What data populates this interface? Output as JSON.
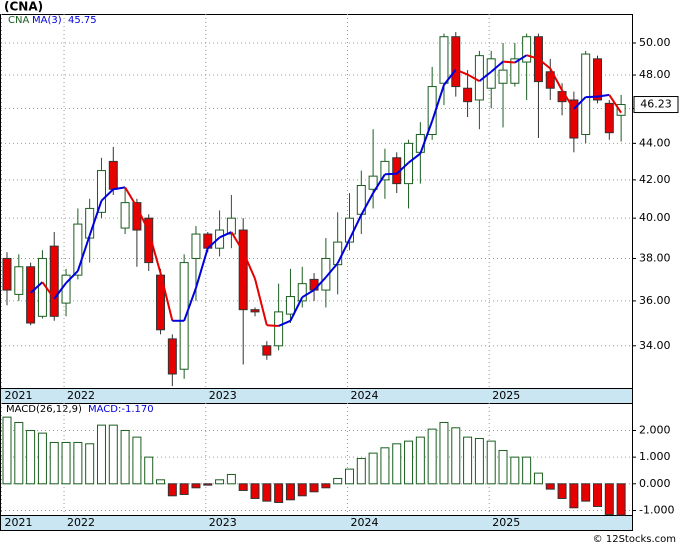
{
  "chart_data": [
    {
      "type": "candlestick",
      "title": "(CNA)",
      "name": "CNA",
      "ma_name": "MA(3)",
      "ma_label": "45.75",
      "last_label": "46.23",
      "log_scale": true,
      "grid": true,
      "up_color": "#1b5e20",
      "down_color": "#e60000",
      "ma_up_color": "#0000dd",
      "ma_down_color": "#e60000",
      "open": [
        38.0,
        36.3,
        37.6,
        35.3,
        38.6,
        35.9,
        37.2,
        39.0,
        40.3,
        43.0,
        39.5,
        40.8,
        40.0,
        37.2,
        34.3,
        33.0,
        38.0,
        39.2,
        38.5,
        39.2,
        39.4,
        35.6,
        34.0,
        34.0,
        35.4,
        36.0,
        37.0,
        36.5,
        37.7,
        38.8,
        40.2,
        41.5,
        42.0,
        43.2,
        41.8,
        43.5,
        44.5,
        47.5,
        50.4,
        47.2,
        46.5,
        47.2,
        47.5,
        47.5,
        48.8,
        50.4,
        48.2,
        47.0,
        46.5,
        44.5,
        49.0,
        46.3,
        45.6
      ],
      "high": [
        38.3,
        38.2,
        37.8,
        38.4,
        39.3,
        37.5,
        40.5,
        41.0,
        43.2,
        43.8,
        41.6,
        41.0,
        40.2,
        37.5,
        34.5,
        38.2,
        39.6,
        39.3,
        40.4,
        41.2,
        40.0,
        35.7,
        34.2,
        36.8,
        37.5,
        37.6,
        37.3,
        39.0,
        40.3,
        41.3,
        42.5,
        44.8,
        43.7,
        43.5,
        44.2,
        45.2,
        48.5,
        50.6,
        50.7,
        48.3,
        49.5,
        49.5,
        50.0,
        50.0,
        50.6,
        50.6,
        49.0,
        47.5,
        47.0,
        49.5,
        49.2,
        46.5,
        46.8
      ],
      "low": [
        35.8,
        36.0,
        34.9,
        35.2,
        35.1,
        35.3,
        37.0,
        37.8,
        40.0,
        41.2,
        39.2,
        37.6,
        37.4,
        34.5,
        32.3,
        32.6,
        36.0,
        38.3,
        38.1,
        38.5,
        33.2,
        35.3,
        33.4,
        33.8,
        35.0,
        35.7,
        36.0,
        35.7,
        36.3,
        38.4,
        39.2,
        40.5,
        41.0,
        41.3,
        40.5,
        41.8,
        44.2,
        46.2,
        46.7,
        45.5,
        44.8,
        46.0,
        44.9,
        47.3,
        46.5,
        44.3,
        46.5,
        45.6,
        43.5,
        44.0,
        46.3,
        44.2,
        44.1
      ],
      "close": [
        36.5,
        37.6,
        35.0,
        38.0,
        35.3,
        37.2,
        39.7,
        40.5,
        42.5,
        41.5,
        40.8,
        39.4,
        37.8,
        34.7,
        32.8,
        37.8,
        39.2,
        38.5,
        39.4,
        40.0,
        35.6,
        35.5,
        33.6,
        35.5,
        36.2,
        36.8,
        36.5,
        38.0,
        38.8,
        40.0,
        41.7,
        42.2,
        43.0,
        41.8,
        44.0,
        44.5,
        47.3,
        50.4,
        47.3,
        46.4,
        49.2,
        49.0,
        48.3,
        49.0,
        50.4,
        47.6,
        47.2,
        46.4,
        44.3,
        49.3,
        46.5,
        44.6,
        46.23
      ],
      "ma": [
        null,
        null,
        36.37,
        36.87,
        36.1,
        36.83,
        37.4,
        39.13,
        40.9,
        41.5,
        41.6,
        40.57,
        39.33,
        37.3,
        35.1,
        35.1,
        36.6,
        38.5,
        39.03,
        39.3,
        38.33,
        37.03,
        34.9,
        34.87,
        35.1,
        36.17,
        36.5,
        37.1,
        37.77,
        38.93,
        40.17,
        41.3,
        42.3,
        42.33,
        42.93,
        43.43,
        45.27,
        47.4,
        48.33,
        48.03,
        47.63,
        48.2,
        48.83,
        48.77,
        49.23,
        49.0,
        48.4,
        47.07,
        45.97,
        46.67,
        46.7,
        46.8,
        45.75
      ],
      "ylim": [
        32.22,
        51.88
      ],
      "yticks": [
        {
          "value": 34,
          "label": "34.00"
        },
        {
          "value": 36,
          "label": "36.00"
        },
        {
          "value": 38,
          "label": "38.00"
        },
        {
          "value": 40,
          "label": "40.00"
        },
        {
          "value": 42,
          "label": "42.00"
        },
        {
          "value": 44,
          "label": "44.00"
        },
        {
          "value": 46,
          "label": "46.00"
        },
        {
          "value": 48,
          "label": "48.00"
        },
        {
          "value": 50,
          "label": "50.00"
        }
      ],
      "xticks": [
        {
          "value": -0.3,
          "label": "2021"
        },
        {
          "value": 5,
          "label": "2022"
        },
        {
          "value": 17,
          "label": "2023"
        },
        {
          "value": 29,
          "label": "2024"
        },
        {
          "value": 41,
          "label": "2025"
        }
      ]
    },
    {
      "type": "bar",
      "name": "MACD(26,12,9)",
      "value_label": "MACD:-1.170",
      "grid": true,
      "up_color": "#1b5e20",
      "down_color": "#e60000",
      "values": [
        2.5,
        2.3,
        2.0,
        1.9,
        1.55,
        1.55,
        1.55,
        1.5,
        2.2,
        2.2,
        2.0,
        1.75,
        1.0,
        0.15,
        -0.45,
        -0.4,
        -0.15,
        -0.05,
        0.15,
        0.35,
        -0.25,
        -0.55,
        -0.65,
        -0.7,
        -0.6,
        -0.45,
        -0.3,
        -0.15,
        0.2,
        0.55,
        0.95,
        1.15,
        1.35,
        1.5,
        1.6,
        1.75,
        2.05,
        2.3,
        2.1,
        1.75,
        1.7,
        1.6,
        1.25,
        1.0,
        1.0,
        0.4,
        -0.2,
        -0.55,
        -0.9,
        -0.65,
        -0.85,
        -1.15,
        -1.17
      ],
      "ylim": [
        -1.17,
        3.03
      ],
      "yticks": [
        {
          "value": -1,
          "label": "-1.000"
        },
        {
          "value": 0,
          "label": "0.000"
        },
        {
          "value": 1,
          "label": "1.000"
        },
        {
          "value": 2,
          "label": "2.000"
        }
      ],
      "xticks": [
        {
          "value": -0.3,
          "label": "2021"
        },
        {
          "value": 5,
          "label": "2022"
        },
        {
          "value": 17,
          "label": "2023"
        },
        {
          "value": 29,
          "label": "2024"
        },
        {
          "value": 41,
          "label": "2025"
        }
      ]
    }
  ],
  "footer": "© 12Stocks.com"
}
